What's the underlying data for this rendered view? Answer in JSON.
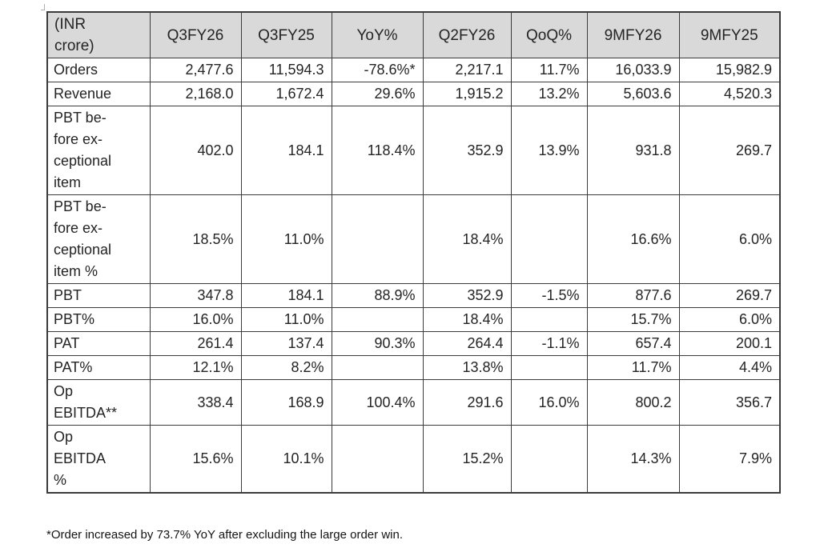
{
  "table": {
    "columns": [
      "(INR\ncrore)",
      "Q3FY26",
      "Q3FY25",
      "YoY%",
      "Q2FY26",
      "QoQ%",
      "9MFY26",
      "9MFY25"
    ],
    "rows": [
      {
        "label": "Orders",
        "values": [
          "2,477.6",
          "11,594.3",
          "-78.6%*",
          "2,217.1",
          "11.7%",
          "16,033.9",
          "15,982.9"
        ]
      },
      {
        "label": "Revenue",
        "values": [
          "2,168.0",
          "1,672.4",
          "29.6%",
          "1,915.2",
          "13.2%",
          "5,603.6",
          "4,520.3"
        ]
      },
      {
        "label": "PBT be-\nfore ex-\nceptional\nitem",
        "values": [
          "402.0",
          "184.1",
          "118.4%",
          "352.9",
          "13.9%",
          "931.8",
          "269.7"
        ]
      },
      {
        "label": "PBT be-\nfore ex-\nceptional\nitem %",
        "values": [
          "18.5%",
          "11.0%",
          "",
          "18.4%",
          "",
          "16.6%",
          "6.0%"
        ]
      },
      {
        "label": "PBT",
        "values": [
          "347.8",
          "184.1",
          "88.9%",
          "352.9",
          "-1.5%",
          "877.6",
          "269.7"
        ]
      },
      {
        "label": "PBT%",
        "values": [
          "16.0%",
          "11.0%",
          "",
          "18.4%",
          "",
          "15.7%",
          "6.0%"
        ]
      },
      {
        "label": "PAT",
        "values": [
          "261.4",
          "137.4",
          "90.3%",
          "264.4",
          "-1.1%",
          "657.4",
          "200.1"
        ]
      },
      {
        "label": "PAT%",
        "values": [
          "12.1%",
          "8.2%",
          "",
          "13.8%",
          "",
          "11.7%",
          "4.4%"
        ]
      },
      {
        "label": "Op\nEBITDA**",
        "values": [
          "338.4",
          "168.9",
          "100.4%",
          "291.6",
          "16.0%",
          "800.2",
          "356.7"
        ]
      },
      {
        "label": "Op\nEBITDA\n%",
        "values": [
          "15.6%",
          "10.1%",
          "",
          "15.2%",
          "",
          "14.3%",
          "7.9%"
        ]
      }
    ]
  },
  "footnote": "*Order increased by 73.7% YoY after excluding the large order win.",
  "colors": {
    "header_bg": "#d9d9d9",
    "border": "#3b3b3b",
    "text": "#242424",
    "page_bg": "#ffffff"
  },
  "chart_data": {
    "type": "table",
    "title": "(INR crore) quarterly financial summary",
    "columns": [
      "(INR crore)",
      "Q3FY26",
      "Q3FY25",
      "YoY%",
      "Q2FY26",
      "QoQ%",
      "9MFY26",
      "9MFY25"
    ],
    "rows": [
      [
        "Orders",
        "2,477.6",
        "11,594.3",
        "-78.6%*",
        "2,217.1",
        "11.7%",
        "16,033.9",
        "15,982.9"
      ],
      [
        "Revenue",
        "2,168.0",
        "1,672.4",
        "29.6%",
        "1,915.2",
        "13.2%",
        "5,603.6",
        "4,520.3"
      ],
      [
        "PBT before exceptional item",
        "402.0",
        "184.1",
        "118.4%",
        "352.9",
        "13.9%",
        "931.8",
        "269.7"
      ],
      [
        "PBT before exceptional item %",
        "18.5%",
        "11.0%",
        "",
        "18.4%",
        "",
        "16.6%",
        "6.0%"
      ],
      [
        "PBT",
        "347.8",
        "184.1",
        "88.9%",
        "352.9",
        "-1.5%",
        "877.6",
        "269.7"
      ],
      [
        "PBT%",
        "16.0%",
        "11.0%",
        "",
        "18.4%",
        "",
        "15.7%",
        "6.0%"
      ],
      [
        "PAT",
        "261.4",
        "137.4",
        "90.3%",
        "264.4",
        "-1.1%",
        "657.4",
        "200.1"
      ],
      [
        "PAT%",
        "12.1%",
        "8.2%",
        "",
        "13.8%",
        "",
        "11.7%",
        "4.4%"
      ],
      [
        "Op EBITDA**",
        "338.4",
        "168.9",
        "100.4%",
        "291.6",
        "16.0%",
        "800.2",
        "356.7"
      ],
      [
        "Op EBITDA %",
        "15.6%",
        "10.1%",
        "",
        "15.2%",
        "",
        "14.3%",
        "7.9%"
      ]
    ],
    "footnote": "*Order increased by 73.7% YoY after excluding the large order win."
  }
}
